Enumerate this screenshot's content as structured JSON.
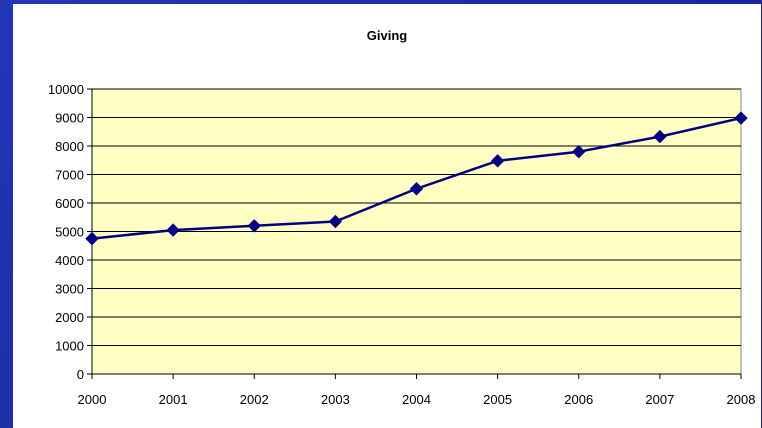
{
  "chart_data": {
    "type": "line",
    "title": "Giving",
    "xlabel": "",
    "ylabel": "",
    "categories": [
      "2000",
      "2001",
      "2002",
      "2003",
      "2004",
      "2005",
      "2006",
      "2007",
      "2008"
    ],
    "series": [
      {
        "values": [
          4750,
          5050,
          5200,
          5350,
          6500,
          7480,
          7800,
          8330,
          8980
        ]
      }
    ],
    "ylim": [
      0,
      10000
    ],
    "yticks": [
      0,
      1000,
      2000,
      3000,
      4000,
      5000,
      6000,
      7000,
      8000,
      9000,
      10000
    ],
    "grid": true,
    "legend": "none",
    "colors": {
      "plot_background": "#ffffc4",
      "line": "#000080",
      "marker": "#000080",
      "gridline": "#000000",
      "slide_background": "#1f2fa8"
    }
  }
}
